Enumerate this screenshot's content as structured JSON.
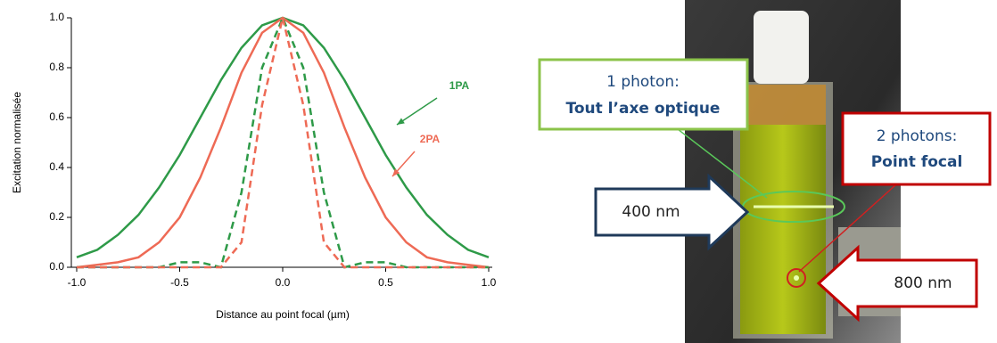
{
  "chart_data": {
    "type": "line",
    "xlabel": "Distance au point focal (µm)",
    "ylabel": "Excitation normalisée",
    "x": [
      -1.0,
      -0.9,
      -0.8,
      -0.7,
      -0.6,
      -0.5,
      -0.4,
      -0.3,
      -0.2,
      -0.1,
      0.0,
      0.1,
      0.2,
      0.3,
      0.4,
      0.5,
      0.6,
      0.7,
      0.8,
      0.9,
      1.0
    ],
    "series": [
      {
        "name": "1PA",
        "color": "#2e9a48",
        "dashed": false,
        "values": [
          0.04,
          0.07,
          0.13,
          0.21,
          0.32,
          0.45,
          0.6,
          0.75,
          0.88,
          0.97,
          1,
          0.97,
          0.88,
          0.75,
          0.6,
          0.45,
          0.32,
          0.21,
          0.13,
          0.07,
          0.04
        ]
      },
      {
        "name": "2PA",
        "color": "#ee6a55",
        "dashed": false,
        "values": [
          0,
          0.01,
          0.02,
          0.04,
          0.1,
          0.2,
          0.36,
          0.56,
          0.78,
          0.94,
          1,
          0.94,
          0.78,
          0.56,
          0.36,
          0.2,
          0.1,
          0.04,
          0.02,
          0.01,
          0
        ]
      },
      {
        "color": "#2e9a48",
        "dashed": true,
        "values": [
          0,
          0,
          0,
          0,
          0,
          0.02,
          0.02,
          0,
          0.3,
          0.8,
          1,
          0.8,
          0.3,
          0,
          0.02,
          0.02,
          0,
          0,
          0,
          0,
          0
        ]
      },
      {
        "color": "#ee6a55",
        "dashed": true,
        "values": [
          0,
          0,
          0,
          0,
          0,
          0,
          0,
          0,
          0.1,
          0.65,
          1,
          0.65,
          0.1,
          0,
          0,
          0,
          0,
          0,
          0,
          0,
          0
        ]
      }
    ],
    "xlim": [
      -1,
      1
    ],
    "ylim": [
      0,
      1
    ],
    "xticks": [
      {
        "value": -1,
        "label": "-1.0"
      },
      {
        "value": -0.5,
        "label": "-0.5"
      },
      {
        "value": 0,
        "label": "0.0"
      },
      {
        "value": 0.5,
        "label": "0.5"
      },
      {
        "value": 1,
        "label": "1.0"
      }
    ],
    "yticks": [
      {
        "value": 0,
        "label": "0.0"
      },
      {
        "value": 0.2,
        "label": "0.2"
      },
      {
        "value": 0.4,
        "label": "0.4"
      },
      {
        "value": 0.6,
        "label": "0.6"
      },
      {
        "value": 0.8,
        "label": "0.8"
      },
      {
        "value": 1,
        "label": "1.0"
      }
    ],
    "grid": false
  },
  "photo": {
    "green_box": {
      "line1": "1 photon:",
      "line2": "Tout l’axe optique"
    },
    "red_box": {
      "line1": "2 photons:",
      "line2": "Point focal"
    },
    "arrow_left": "400 nm",
    "arrow_right": "800 nm"
  }
}
